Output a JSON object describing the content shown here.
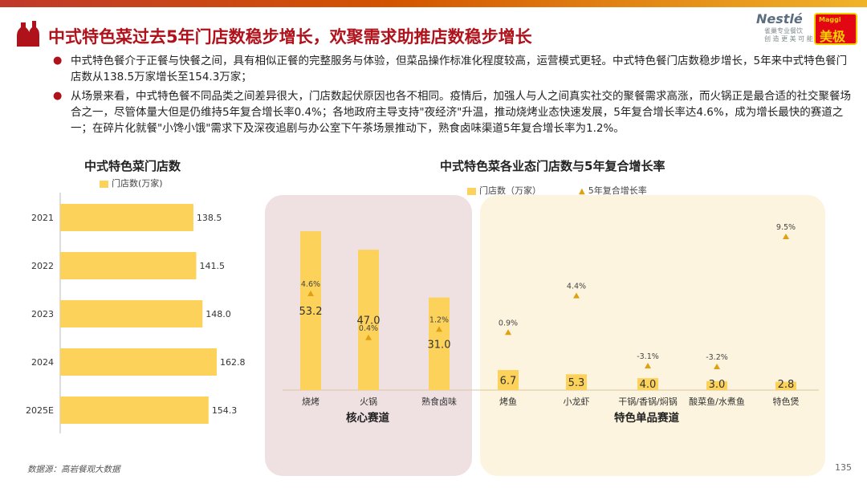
{
  "header": {
    "title": "中式特色菜过去5年门店数稳步增长，欢聚需求助推店数稳步增长",
    "brand_nestle": "Nestlé",
    "brand_nestle_sub": "雀巢专业餐饮",
    "brand_nestle_tag": "创 造 更 美 可 能",
    "brand_maggi_top": "Maggi",
    "brand_maggi": "美极"
  },
  "bullets": [
    "中式特色餐介于正餐与快餐之间，具有相似正餐的完整服务与体验，但菜品操作标准化程度较高，运营模式更轻。中式特色餐门店数稳步增长，5年来中式特色餐门店数从138.5万家增长至154.3万家；",
    "从场景来看，中式特色餐不同品类之间差异很大，门店数起伏原因也各不相同。疫情后，加强人与人之间真实社交的聚餐需求高涨，而火锅正是最合适的社交聚餐场合之一，尽管体量大但是仍维持5年复合增长率0.4%；各地政府主导支持\"夜经济\"升温，推动烧烤业态快速发展，5年复合增长率达4.6%，成为增长最快的赛道之一；在碎片化就餐\"小馋小饿\"需求下及深夜追剧与办公室下午茶场景推动下，熟食卤味渠道5年复合增长率为1.2%。"
  ],
  "colors": {
    "bar": "#fcd25b",
    "marker": "#e0a010",
    "title": "#b0121b"
  },
  "chart_data": [
    {
      "type": "bar",
      "orientation": "horizontal",
      "title": "中式特色菜门店数",
      "legend": "门店数(万家)",
      "categories": [
        "2021",
        "2022",
        "2023",
        "2024",
        "2025E"
      ],
      "values": [
        138.5,
        141.5,
        148.0,
        162.8,
        154.3
      ],
      "value_labels": [
        "138.5",
        "141.5",
        "148.0",
        "162.8",
        "154.3"
      ]
    },
    {
      "type": "bar",
      "title": "中式特色菜各业态门店数与5年复合增长率",
      "legend_bar": "门店数（万家）",
      "legend_marker": "5年复合增长率",
      "groups": [
        {
          "label": "核心赛道",
          "categories": [
            "烧烤",
            "火锅",
            "熟食卤味"
          ]
        },
        {
          "label": "特色单品赛道",
          "categories": [
            "烤鱼",
            "小龙虾",
            "干锅/香锅/焖锅",
            "酸菜鱼/水煮鱼",
            "特色煲"
          ]
        }
      ],
      "categories": [
        "烧烤",
        "火锅",
        "熟食卤味",
        "烤鱼",
        "小龙虾",
        "干锅/香锅/焖锅",
        "酸菜鱼/水煮鱼",
        "特色煲"
      ],
      "series": [
        {
          "name": "门店数（万家）",
          "values": [
            53.2,
            47.0,
            31.0,
            6.7,
            5.3,
            4.0,
            3.0,
            2.8
          ],
          "labels": [
            "53.2",
            "47.0",
            "31.0",
            "6.7",
            "5.3",
            "4.0",
            "3.0",
            "2.8"
          ]
        },
        {
          "name": "5年复合增长率",
          "values": [
            4.6,
            0.4,
            1.2,
            0.9,
            4.4,
            -3.1,
            -3.2,
            9.5
          ],
          "labels": [
            "4.6%",
            "0.4%",
            "1.2%",
            "0.9%",
            "4.4%",
            "-3.1%",
            "-3.2%",
            "9.5%"
          ]
        }
      ]
    }
  ],
  "footer": {
    "source": "数据源：高岩餐观大数据",
    "page": "135"
  }
}
